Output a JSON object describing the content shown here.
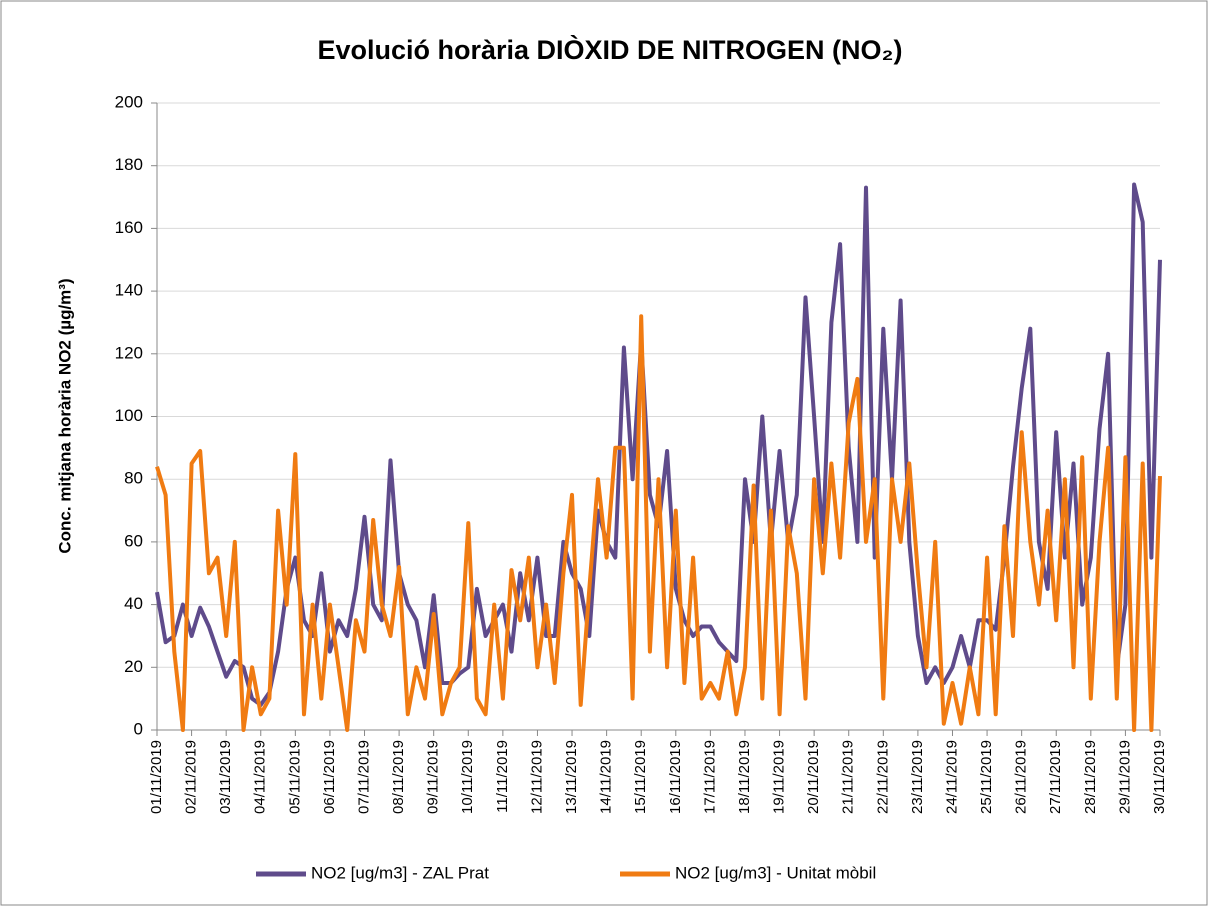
{
  "chart_data": {
    "type": "line",
    "title": "Evolució horària DIÒXID DE NITROGEN (NO₂)",
    "y_label": "Conc. mitjana horària NO2 (µg/m³)",
    "categories": [
      "01/11/2019",
      null,
      null,
      null,
      "02/11/2019",
      null,
      null,
      null,
      "03/11/2019",
      null,
      null,
      null,
      "04/11/2019",
      null,
      null,
      null,
      "05/11/2019",
      null,
      null,
      null,
      "06/11/2019",
      null,
      null,
      null,
      "07/11/2019",
      null,
      null,
      null,
      "08/11/2019",
      null,
      null,
      null,
      "09/11/2019",
      null,
      null,
      null,
      "10/11/2019",
      null,
      null,
      null,
      "11/11/2019",
      null,
      null,
      null,
      "12/11/2019",
      null,
      null,
      null,
      "13/11/2019",
      null,
      null,
      null,
      "14/11/2019",
      null,
      null,
      null,
      "15/11/2019",
      null,
      null,
      null,
      "16/11/2019",
      null,
      null,
      null,
      "17/11/2019",
      null,
      null,
      null,
      "18/11/2019",
      null,
      null,
      null,
      "19/11/2019",
      null,
      null,
      null,
      "20/11/2019",
      null,
      null,
      null,
      "21/11/2019",
      null,
      null,
      null,
      "22/11/2019",
      null,
      null,
      null,
      "23/11/2019",
      null,
      null,
      null,
      "24/11/2019",
      null,
      null,
      null,
      "25/11/2019",
      null,
      null,
      null,
      "26/11/2019",
      null,
      null,
      null,
      "27/11/2019",
      null,
      null,
      null,
      "28/11/2019",
      null,
      null,
      null,
      "29/11/2019",
      null,
      null,
      null,
      "30/11/2019"
    ],
    "series": [
      {
        "name": "NO2 [ug/m3] - ZAL Prat",
        "color": "#5f4b8b",
        "values": [
          44,
          28,
          30,
          40,
          30,
          39,
          33,
          25,
          17,
          22,
          20,
          10,
          8,
          12,
          25,
          45,
          55,
          35,
          30,
          50,
          25,
          35,
          30,
          45,
          68,
          40,
          35,
          86,
          50,
          40,
          35,
          20,
          43,
          15,
          15,
          18,
          20,
          45,
          30,
          35,
          40,
          25,
          50,
          35,
          55,
          30,
          30,
          60,
          50,
          45,
          30,
          70,
          60,
          55,
          122,
          80,
          124,
          75,
          65,
          89,
          45,
          35,
          30,
          33,
          33,
          28,
          25,
          22,
          80,
          60,
          100,
          60,
          89,
          60,
          75,
          138,
          100,
          60,
          130,
          155,
          90,
          60,
          173,
          55,
          128,
          80,
          137,
          60,
          30,
          15,
          20,
          15,
          20,
          30,
          20,
          35,
          35,
          32,
          55,
          84,
          109,
          128,
          60,
          45,
          95,
          55,
          85,
          40,
          55,
          96,
          120,
          20,
          40,
          174,
          162,
          55,
          150
        ]
      },
      {
        "name": "NO2 [ug/m3] - Unitat mòbil",
        "color": "#f07b12",
        "values": [
          84,
          75,
          25,
          0,
          85,
          89,
          50,
          55,
          30,
          60,
          0,
          20,
          5,
          10,
          70,
          40,
          88,
          5,
          40,
          10,
          40,
          20,
          0,
          35,
          25,
          67,
          40,
          30,
          52,
          5,
          20,
          10,
          37,
          5,
          15,
          20,
          66,
          10,
          5,
          40,
          10,
          51,
          35,
          55,
          20,
          40,
          15,
          50,
          75,
          8,
          45,
          80,
          55,
          90,
          90,
          10,
          132,
          25,
          80,
          20,
          70,
          15,
          55,
          10,
          15,
          10,
          25,
          5,
          20,
          78,
          10,
          70,
          5,
          65,
          50,
          10,
          80,
          50,
          85,
          55,
          98,
          112,
          60,
          80,
          10,
          80,
          60,
          85,
          50,
          20,
          60,
          2,
          15,
          2,
          20,
          5,
          55,
          5,
          65,
          30,
          95,
          60,
          40,
          70,
          35,
          80,
          20,
          87,
          10,
          60,
          90,
          10,
          87,
          0,
          85,
          0,
          81
        ]
      }
    ],
    "ylim": [
      0,
      200
    ],
    "yticks": [
      0,
      20,
      40,
      60,
      80,
      100,
      120,
      140,
      160,
      180,
      200
    ],
    "grid": true,
    "legend": "bottom"
  }
}
